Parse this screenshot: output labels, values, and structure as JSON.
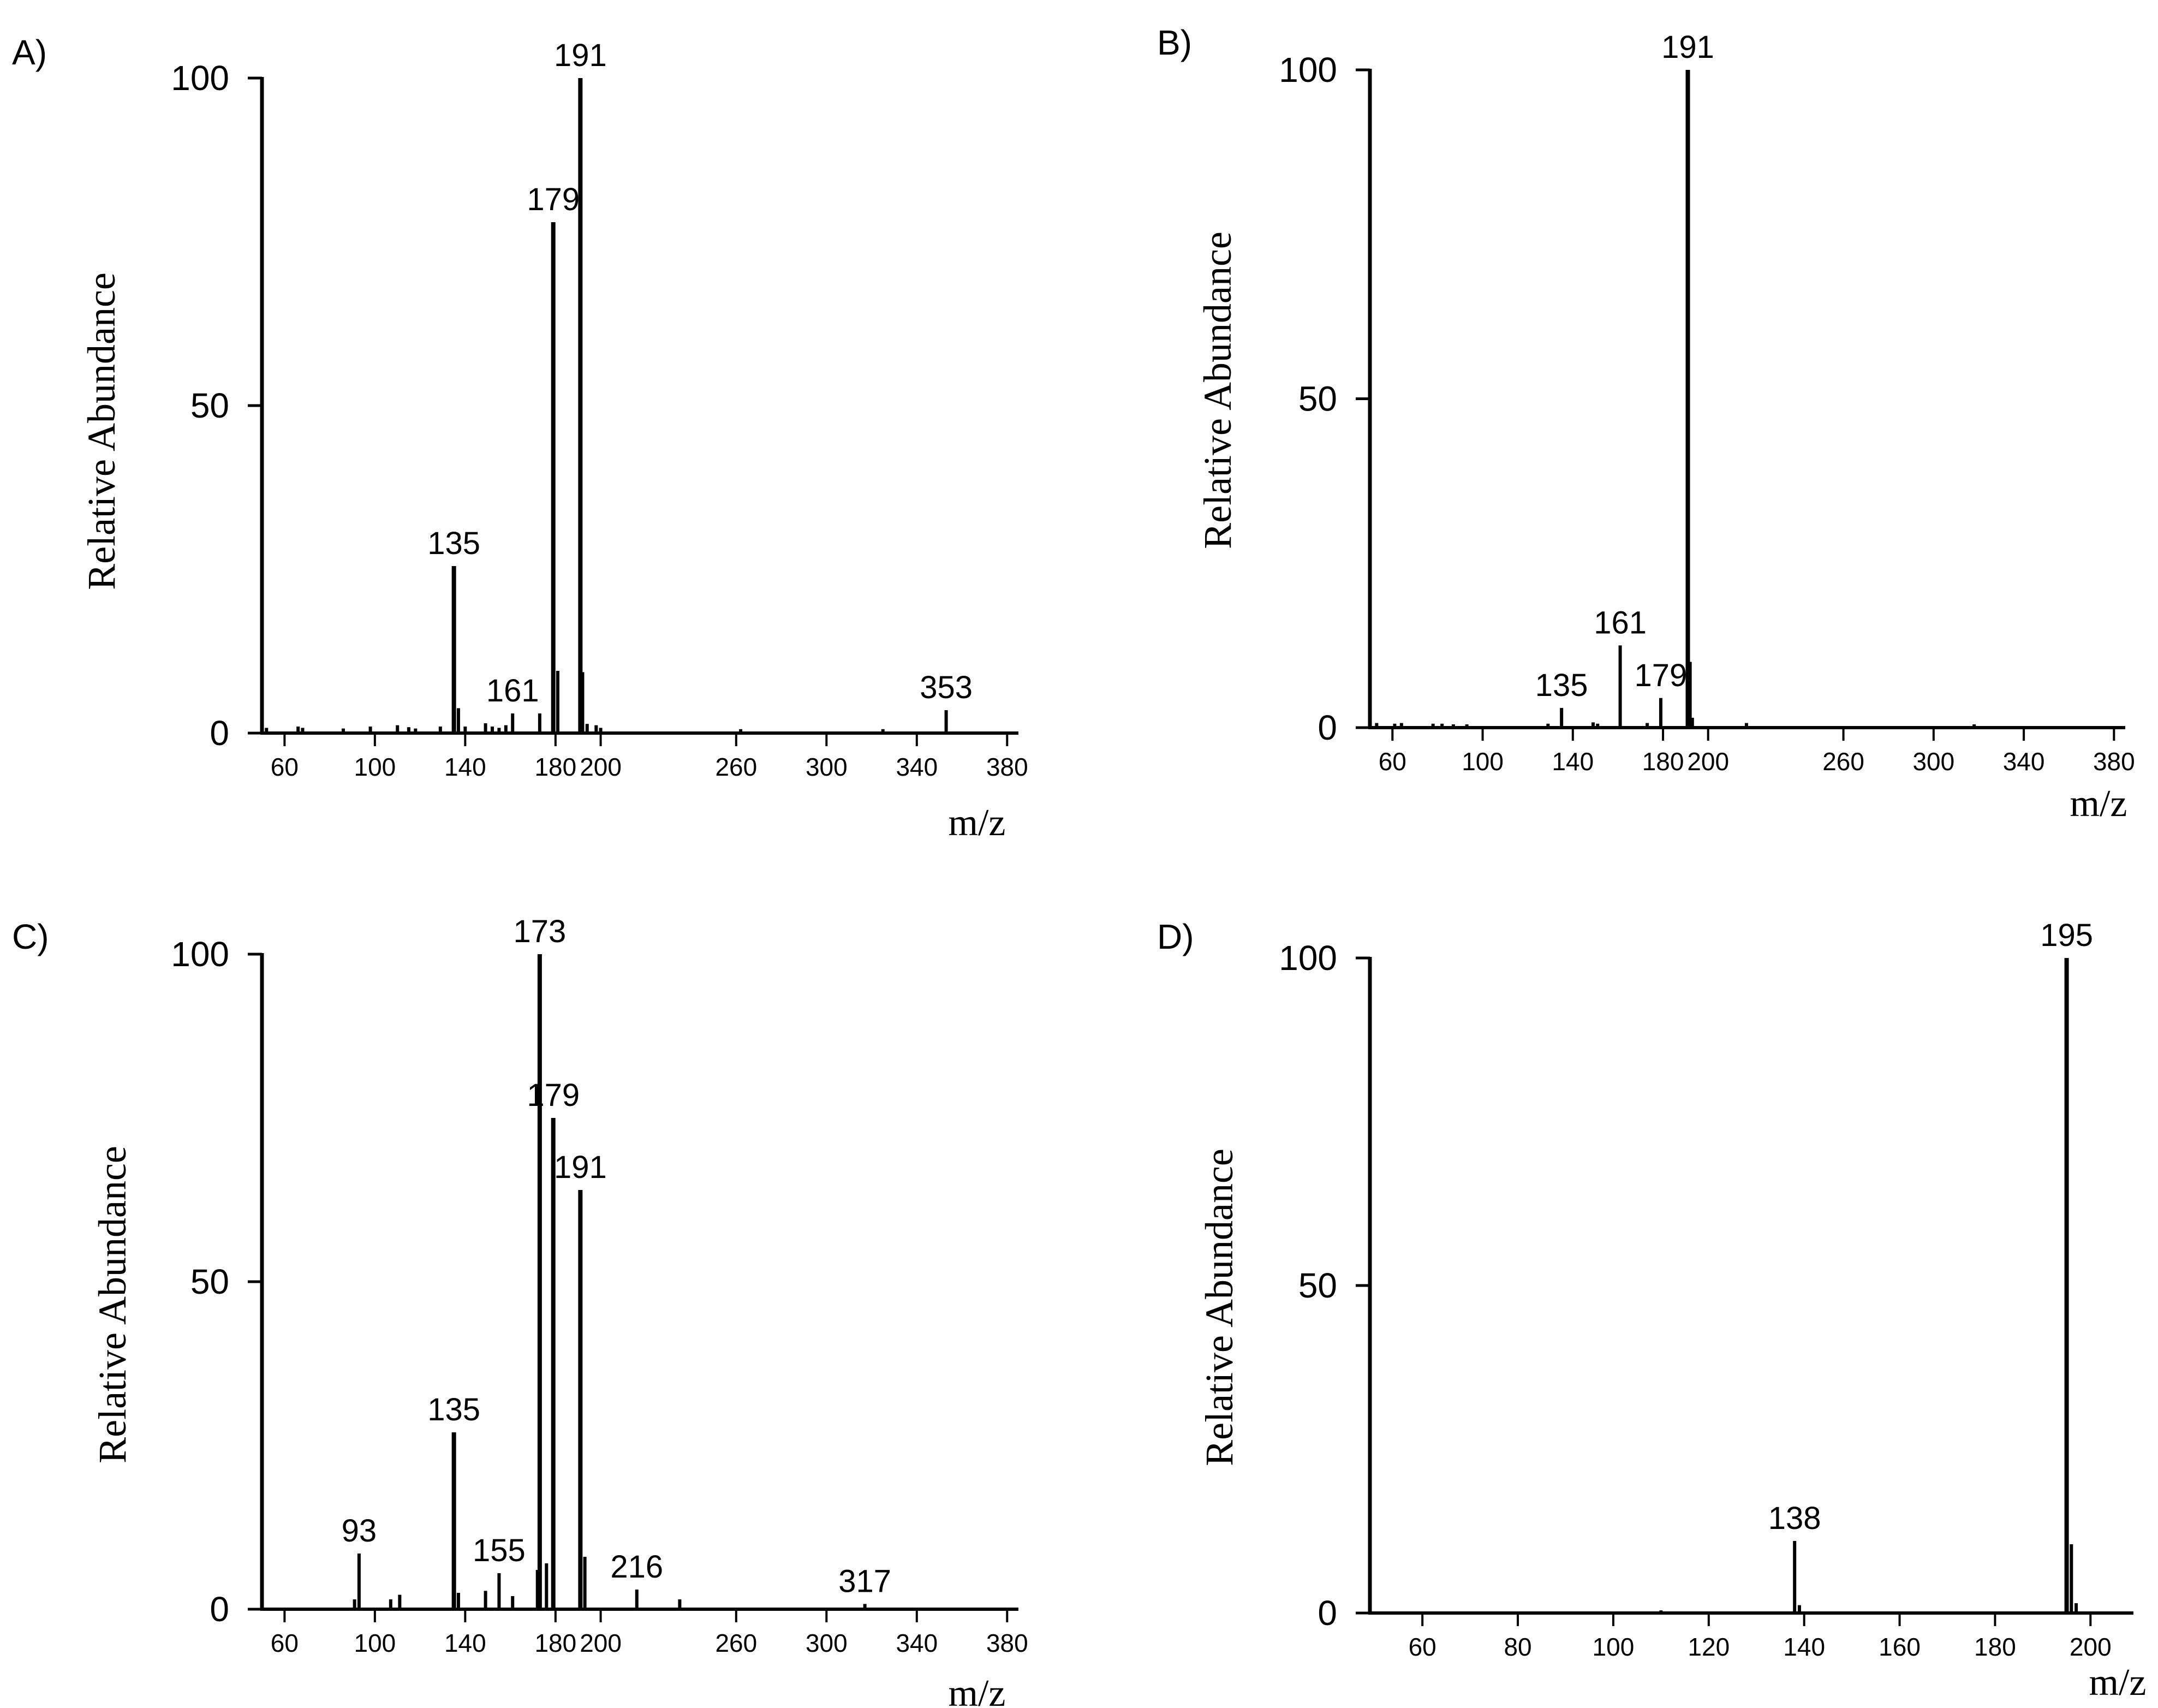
{
  "chart_data": [
    {
      "type": "bar",
      "panel_label": "A)",
      "xlabel": "m/z",
      "ylabel": "Relative Abundance",
      "xlim": [
        50,
        385
      ],
      "ylim": [
        0,
        100
      ],
      "xticks": [
        60,
        100,
        140,
        180,
        200,
        260,
        300,
        340,
        380
      ],
      "yticks": [
        0,
        50,
        100
      ],
      "peaks": [
        {
          "mz": 52,
          "abundance": 0.8
        },
        {
          "mz": 66,
          "abundance": 1.0
        },
        {
          "mz": 68,
          "abundance": 0.8
        },
        {
          "mz": 86,
          "abundance": 0.7
        },
        {
          "mz": 98,
          "abundance": 1.0
        },
        {
          "mz": 110,
          "abundance": 1.2
        },
        {
          "mz": 115,
          "abundance": 0.9
        },
        {
          "mz": 118,
          "abundance": 0.7
        },
        {
          "mz": 129,
          "abundance": 1.0
        },
        {
          "mz": 135,
          "abundance": 25.5,
          "label": "135"
        },
        {
          "mz": 137,
          "abundance": 3.8
        },
        {
          "mz": 140,
          "abundance": 1.0
        },
        {
          "mz": 149,
          "abundance": 1.5
        },
        {
          "mz": 152,
          "abundance": 1.0
        },
        {
          "mz": 155,
          "abundance": 0.8
        },
        {
          "mz": 158,
          "abundance": 1.2
        },
        {
          "mz": 161,
          "abundance": 3.0,
          "label": "161"
        },
        {
          "mz": 173,
          "abundance": 3.0
        },
        {
          "mz": 179,
          "abundance": 78,
          "label": "179"
        },
        {
          "mz": 181,
          "abundance": 9.5
        },
        {
          "mz": 191,
          "abundance": 100,
          "label": "191"
        },
        {
          "mz": 192,
          "abundance": 9.3
        },
        {
          "mz": 194,
          "abundance": 1.4
        },
        {
          "mz": 198,
          "abundance": 1.2
        },
        {
          "mz": 200,
          "abundance": 0.8
        },
        {
          "mz": 262,
          "abundance": 0.6
        },
        {
          "mz": 325,
          "abundance": 0.6
        },
        {
          "mz": 353,
          "abundance": 3.5,
          "label": "353"
        }
      ]
    },
    {
      "type": "bar",
      "panel_label": "B)",
      "xlabel": "m/z",
      "ylabel": "Relative Abundance",
      "xlim": [
        50,
        385
      ],
      "ylim": [
        0,
        100
      ],
      "xticks": [
        60,
        100,
        140,
        180,
        200,
        260,
        300,
        340,
        380
      ],
      "yticks": [
        0,
        50,
        100
      ],
      "peaks": [
        {
          "mz": 53,
          "abundance": 0.7
        },
        {
          "mz": 61,
          "abundance": 0.6
        },
        {
          "mz": 64,
          "abundance": 0.7
        },
        {
          "mz": 78,
          "abundance": 0.6
        },
        {
          "mz": 82,
          "abundance": 0.6
        },
        {
          "mz": 87,
          "abundance": 0.5
        },
        {
          "mz": 93,
          "abundance": 0.5
        },
        {
          "mz": 129,
          "abundance": 0.6
        },
        {
          "mz": 135,
          "abundance": 3.0,
          "label": "135"
        },
        {
          "mz": 149,
          "abundance": 0.8
        },
        {
          "mz": 151,
          "abundance": 0.6
        },
        {
          "mz": 161,
          "abundance": 12.5,
          "label": "161"
        },
        {
          "mz": 173,
          "abundance": 0.7
        },
        {
          "mz": 179,
          "abundance": 4.5,
          "label": "179"
        },
        {
          "mz": 191,
          "abundance": 100,
          "label": "191"
        },
        {
          "mz": 192,
          "abundance": 10.0
        },
        {
          "mz": 193,
          "abundance": 1.5
        },
        {
          "mz": 217,
          "abundance": 0.7
        },
        {
          "mz": 318,
          "abundance": 0.5
        }
      ]
    },
    {
      "type": "bar",
      "panel_label": "C)",
      "xlabel": "m/z",
      "ylabel": "Relative Abundance",
      "xlim": [
        50,
        385
      ],
      "ylim": [
        0,
        100
      ],
      "xticks": [
        60,
        100,
        140,
        180,
        200,
        260,
        300,
        340,
        380
      ],
      "yticks": [
        0,
        50,
        100
      ],
      "peaks": [
        {
          "mz": 91,
          "abundance": 1.5
        },
        {
          "mz": 93,
          "abundance": 8.5,
          "label": "93"
        },
        {
          "mz": 107,
          "abundance": 1.5
        },
        {
          "mz": 111,
          "abundance": 2.2
        },
        {
          "mz": 135,
          "abundance": 27,
          "label": "135"
        },
        {
          "mz": 137,
          "abundance": 2.5
        },
        {
          "mz": 149,
          "abundance": 2.8
        },
        {
          "mz": 155,
          "abundance": 5.5,
          "label": "155"
        },
        {
          "mz": 161,
          "abundance": 2.0
        },
        {
          "mz": 172,
          "abundance": 6.0
        },
        {
          "mz": 173,
          "abundance": 100,
          "label": "173"
        },
        {
          "mz": 176,
          "abundance": 7.0
        },
        {
          "mz": 179,
          "abundance": 75,
          "label": "179"
        },
        {
          "mz": 191,
          "abundance": 64,
          "label": "191"
        },
        {
          "mz": 193,
          "abundance": 8.0
        },
        {
          "mz": 216,
          "abundance": 3.0,
          "label": "216"
        },
        {
          "mz": 235,
          "abundance": 1.5
        },
        {
          "mz": 317,
          "abundance": 0.8,
          "label": "317"
        }
      ]
    },
    {
      "type": "bar",
      "panel_label": "D)",
      "xlabel": "m/z",
      "ylabel": "Relative Abundance",
      "xlim": [
        49,
        209
      ],
      "ylim": [
        0,
        100
      ],
      "xticks": [
        60,
        80,
        100,
        120,
        140,
        160,
        180,
        200
      ],
      "yticks": [
        0,
        50,
        100
      ],
      "peaks": [
        {
          "mz": 110,
          "abundance": 0.4
        },
        {
          "mz": 138,
          "abundance": 11,
          "label": "138"
        },
        {
          "mz": 139,
          "abundance": 1.2
        },
        {
          "mz": 195,
          "abundance": 100,
          "label": "195"
        },
        {
          "mz": 196,
          "abundance": 10.5
        },
        {
          "mz": 197,
          "abundance": 1.5
        }
      ]
    }
  ]
}
